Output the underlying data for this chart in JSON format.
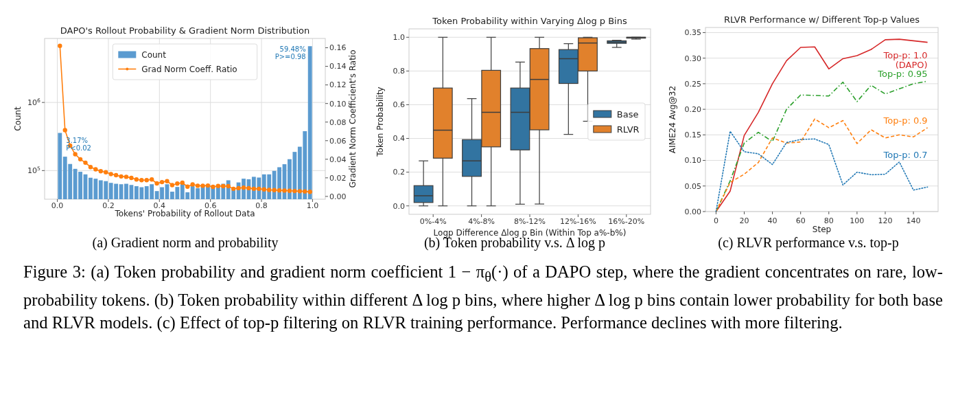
{
  "chart_data": [
    {
      "type": "histogram",
      "title": "DAPO's Rollout Probability & Gradient Norm Distribution",
      "xlabel": "Tokens' Probability of Rollout Data",
      "ylabel": "Count",
      "y2label": "Gradient Norm Coefficient's Ratio",
      "bins": [
        0,
        0.02,
        0.04,
        0.06,
        0.08,
        0.1,
        0.12,
        0.14,
        0.16,
        0.18,
        0.2,
        0.22,
        0.24,
        0.26,
        0.28,
        0.3,
        0.32,
        0.34,
        0.36,
        0.38,
        0.4,
        0.42,
        0.44,
        0.46,
        0.48,
        0.5,
        0.52,
        0.54,
        0.56,
        0.58,
        0.6,
        0.62,
        0.64,
        0.66,
        0.68,
        0.7,
        0.72,
        0.74,
        0.76,
        0.78,
        0.8,
        0.82,
        0.84,
        0.86,
        0.88,
        0.9,
        0.92,
        0.94,
        0.96,
        0.98,
        1
      ],
      "series": [
        {
          "name": "Count",
          "color": "#5b9bd0",
          "values": [
            357000,
            160000,
            125000,
            106000,
            96000,
            88000,
            78500,
            76000,
            72000,
            70000,
            66000,
            64000,
            63000,
            64000,
            61500,
            59000,
            57000,
            59000,
            63000,
            50000,
            57000,
            63000,
            49000,
            57500,
            64000,
            48000,
            59000,
            55000,
            59000,
            61500,
            60000,
            62000,
            64000,
            72000,
            55000,
            67000,
            76000,
            74500,
            81000,
            79000,
            88000,
            88000,
            99000,
            112000,
            124000,
            147000,
            188000,
            224000,
            379000,
            6700000
          ]
        },
        {
          "name": "Grad Norm Coeff. Ratio",
          "type": "line",
          "axis": "y2",
          "color": "#ff7f0e",
          "marker": "circle",
          "x": [
            0.01,
            0.03,
            0.05,
            0.07,
            0.09,
            0.11,
            0.13,
            0.15,
            0.17,
            0.19,
            0.21,
            0.23,
            0.25,
            0.27,
            0.29,
            0.31,
            0.33,
            0.35,
            0.37,
            0.39,
            0.41,
            0.43,
            0.45,
            0.47,
            0.49,
            0.51,
            0.53,
            0.55,
            0.57,
            0.59,
            0.61,
            0.63,
            0.65,
            0.67,
            0.69,
            0.71,
            0.73,
            0.75,
            0.77,
            0.79,
            0.81,
            0.83,
            0.85,
            0.87,
            0.89,
            0.91,
            0.93,
            0.95,
            0.97,
            0.99
          ],
          "values": [
            0.162,
            0.0713,
            0.0547,
            0.0454,
            0.04,
            0.0363,
            0.0316,
            0.0292,
            0.0271,
            0.026,
            0.0241,
            0.0229,
            0.0215,
            0.0211,
            0.0199,
            0.0182,
            0.0175,
            0.0175,
            0.0182,
            0.014,
            0.0154,
            0.0164,
            0.0122,
            0.0138,
            0.0147,
            0.0105,
            0.0129,
            0.0115,
            0.0115,
            0.0117,
            0.0103,
            0.0112,
            0.011,
            0.011,
            0.0082,
            0.0089,
            0.0094,
            0.0089,
            0.0082,
            0.0082,
            0.0075,
            0.007,
            0.0068,
            0.0065,
            0.0063,
            0.0061,
            0.0058,
            0.0056,
            0.0054,
            0.0049
          ]
        }
      ],
      "xlim": [
        -0.05,
        1.05
      ],
      "ylim": [
        38000,
        8700000
      ],
      "y2lim": [
        -0.003,
        0.17
      ],
      "log": true,
      "grid": true,
      "legend": "top",
      "xticks": [
        {
          "value": 0,
          "label": "0.0"
        },
        0.2,
        0.4,
        0.6,
        0.8,
        {
          "value": 1,
          "label": "1.0"
        }
      ],
      "yticks": [
        {
          "value": 100000,
          "label": "10$^{5}$"
        },
        {
          "value": 1000000,
          "label": "10$^{6}$"
        }
      ],
      "y2ticks": [
        {
          "value": 0,
          "label": "0.00"
        },
        0.02,
        0.04,
        0.06,
        0.08,
        {
          "value": 0.1,
          "label": "0.10"
        },
        0.12,
        0.14,
        0.16
      ],
      "annotations": [
        "(a) Gradient norm and probability",
        {
          "text": "3.17%\nP<0.02",
          "x": 0.01,
          "y": 357000
        },
        {
          "text": "59.48%\nP>=0.98",
          "x": 0.99,
          "y": 6700000
        }
      ]
    },
    {
      "type": "box",
      "title": "Token Probability within Varying Δlog p Bins",
      "xlabel": "Logp Difference Δlog p Bin (Within Top a%-b%)",
      "ylabel": "Token Probability",
      "categories": [
        "0%-4%",
        "4%-8%",
        "8%-12%",
        "12%-16%",
        "16%-20%"
      ],
      "series": [
        {
          "name": "Base",
          "color": "#3274a1",
          "boxes": [
            {
              "low": 0,
              "q1": 0.02,
              "median": 0.06,
              "q3": 0.12,
              "high": 0.267
            },
            {
              "low": 0,
              "q1": 0.175,
              "median": 0.267,
              "q3": 0.393,
              "high": 0.636
            },
            {
              "low": 0.01,
              "q1": 0.332,
              "median": 0.555,
              "q3": 0.699,
              "high": 0.853
            },
            {
              "low": 0.424,
              "q1": 0.726,
              "median": 0.873,
              "q3": 0.927,
              "high": 0.962
            },
            {
              "low": 0.94,
              "q1": 0.964,
              "median": 0.971,
              "q3": 0.979,
              "high": 0.982
            }
          ]
        },
        {
          "name": "RLVR",
          "color": "#e1812c",
          "boxes": [
            {
              "low": 0,
              "q1": 0.283,
              "median": 0.449,
              "q3": 0.699,
              "high": 1
            },
            {
              "low": 0,
              "q1": 0.35,
              "median": 0.555,
              "q3": 0.804,
              "high": 1
            },
            {
              "low": 0.011,
              "q1": 0.451,
              "median": 0.75,
              "q3": 0.933,
              "high": 1
            },
            {
              "low": 0.502,
              "q1": 0.8,
              "median": 0.966,
              "q3": 0.997,
              "high": 1
            },
            {
              "low": 0.989,
              "q1": 0.995,
              "median": 0.999,
              "q3": 1,
              "high": 1
            }
          ]
        }
      ],
      "ylim": [
        -0.05,
        1.05
      ],
      "yticks": [
        {
          "value": 0,
          "label": "0.0"
        },
        0.2,
        0.4,
        0.6,
        0.8,
        {
          "value": 1,
          "label": "1.0"
        }
      ],
      "grid": "y",
      "legend": "right",
      "annotations": [
        "(b) Token probability v.s. Δ log p"
      ]
    },
    {
      "type": "line",
      "title": "RLVR Performance w/ Different Top-p Values",
      "xlabel": "Step",
      "ylabel": "AIME24 Avg@32",
      "x": [
        0,
        10,
        20,
        30,
        40,
        50,
        60,
        70,
        80,
        90,
        100,
        110,
        120,
        130,
        140,
        150
      ],
      "series": [
        {
          "name": "Top-p: 1.0\n(DAPO)",
          "color": "#d62728",
          "line_style": "solid",
          "values": [
            0,
            0.04,
            0.149,
            0.194,
            0.25,
            0.295,
            0.321,
            0.322,
            0.279,
            0.299,
            0.305,
            0.317,
            0.336,
            0.337,
            0.334,
            0.331
          ]
        },
        {
          "name": "Top-p: 0.95",
          "color": "#2ca02c",
          "line_style": "dashdot",
          "values": [
            0,
            0.06,
            0.134,
            0.155,
            0.137,
            0.2,
            0.228,
            0.227,
            0.226,
            0.253,
            0.215,
            0.247,
            0.23,
            0.24,
            0.25,
            0.255
          ]
        },
        {
          "name": "Top-p: 0.9",
          "color": "#ff7f0e",
          "line_style": "dashed",
          "values": [
            0,
            0.057,
            0.073,
            0.096,
            0.144,
            0.134,
            0.136,
            0.181,
            0.164,
            0.178,
            0.133,
            0.16,
            0.144,
            0.15,
            0.146,
            0.164
          ]
        },
        {
          "name": "Top-p: 0.7",
          "color": "#1f77b4",
          "line_style": "dotted",
          "values": [
            0,
            0.157,
            0.117,
            0.113,
            0.092,
            0.135,
            0.141,
            0.142,
            0.131,
            0.052,
            0.077,
            0.072,
            0.073,
            0.097,
            0.042,
            0.048
          ]
        }
      ],
      "xlim": [
        -7.5,
        157.5
      ],
      "ylim": [
        0,
        0.36
      ],
      "xticks": [
        0,
        20,
        40,
        60,
        80,
        100,
        120,
        140
      ],
      "yticks": [
        {
          "value": 0,
          "label": "0.00"
        },
        0.05,
        {
          "value": 0.1,
          "label": "0.10"
        },
        0.15,
        {
          "value": 0.2,
          "label": "0.20"
        },
        0.25,
        {
          "value": 0.3,
          "label": "0.30"
        },
        0.35
      ],
      "grid": "y",
      "annotations": [
        "(c) RLVR performance v.s. top-p"
      ]
    },
    {
      "type": "other",
      "annotations": [
        "Figure 3: (a) Token probability and gradient norm coefficient 1 − π$_{θ}$(·) of a DAPO step, where the gradient concentrates on rare, low-probability tokens. (b) Token probability within different Δ log p bins, where higher Δ log p bins contain lower probability for both base and RLVR models. (c) Effect of top-p filtering on RLVR training performance. Performance declines with more filtering."
      ]
    }
  ]
}
